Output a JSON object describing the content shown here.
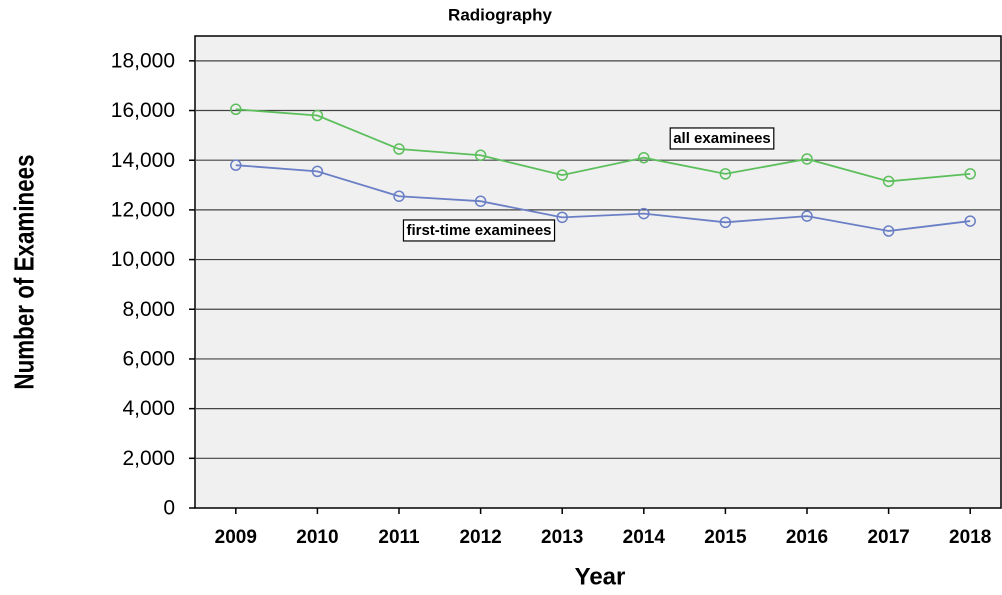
{
  "chart_data": {
    "type": "line",
    "title": "Radiography",
    "x_label": "Year",
    "y_label": "Number of Examinees",
    "x": [
      2009,
      2010,
      2011,
      2012,
      2013,
      2014,
      2015,
      2016,
      2017,
      2018
    ],
    "xlim": [
      2008.5,
      2018.5
    ],
    "series": [
      {
        "name": "all examinees",
        "color": "#5cbf5c",
        "values": [
          16050,
          15800,
          14450,
          14200,
          13400,
          14100,
          13450,
          14050,
          13150,
          13450
        ]
      },
      {
        "name": "first-time examinees",
        "color": "#6a7fc5",
        "values": [
          13800,
          13550,
          12550,
          12350,
          11700,
          11850,
          11500,
          11750,
          11150,
          11550
        ]
      }
    ],
    "ylim": [
      0,
      19000
    ],
    "yticks": [
      0,
      {
        "value": 2000,
        "label": "2,000"
      },
      {
        "value": 4000,
        "label": "4,000"
      },
      {
        "value": 6000,
        "label": "6,000"
      },
      {
        "value": 8000,
        "label": "8,000"
      },
      {
        "value": 10000,
        "label": "10,000"
      },
      {
        "value": 12000,
        "label": "12,000"
      },
      {
        "value": 14000,
        "label": "14,000"
      },
      {
        "value": 16000,
        "label": "16,000"
      },
      {
        "value": 18000,
        "label": "18,000"
      }
    ],
    "grid": true
  }
}
